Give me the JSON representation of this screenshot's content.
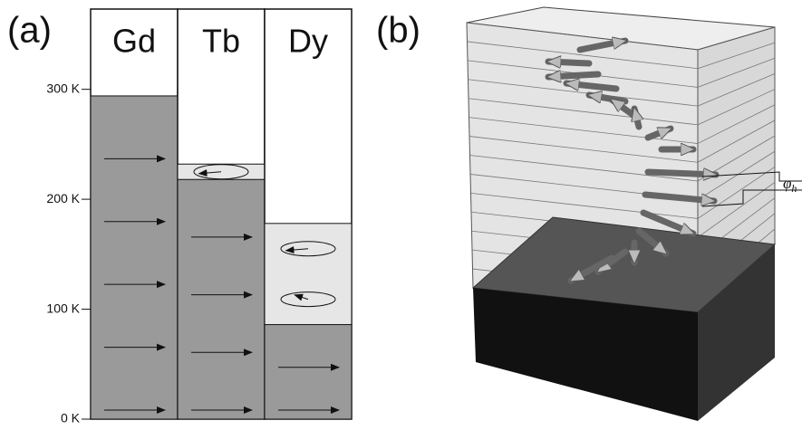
{
  "panel_a": {
    "label": "(a)",
    "ylim": [
      0,
      373
    ],
    "yticks": [
      {
        "value": 0,
        "label": "0 K"
      },
      {
        "value": 100,
        "label": "100 K"
      },
      {
        "value": 200,
        "label": "200 K"
      },
      {
        "value": 300,
        "label": "300 K"
      }
    ],
    "columns": [
      {
        "name": "Gd",
        "ferromagnetic_below": 294
      },
      {
        "name": "Tb",
        "ferromagnetic_below": 218,
        "helical_below": 232
      },
      {
        "name": "Dy",
        "ferromagnetic_below": 86,
        "helical_below": 178
      }
    ]
  },
  "panel_b": {
    "label": "(b)",
    "angle_symbol": "φ",
    "angle_subscript": "h"
  }
}
